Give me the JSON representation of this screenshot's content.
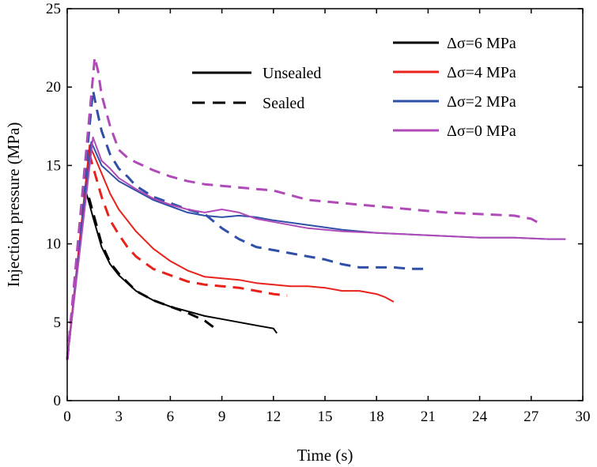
{
  "chart_data": {
    "type": "line",
    "xlabel": "Time (s)",
    "ylabel": "Injection pressure (MPa)",
    "xlim": [
      0,
      30
    ],
    "ylim": [
      0,
      25
    ],
    "xticks": [
      0,
      3,
      6,
      9,
      12,
      15,
      18,
      21,
      24,
      27,
      30
    ],
    "yticks": [
      0,
      5,
      10,
      15,
      20,
      25
    ],
    "grid": false,
    "legend_style": {
      "position": "top-left-center",
      "entries": [
        {
          "label": "Unsealed",
          "dash": "solid"
        },
        {
          "label": "Sealed",
          "dash": "dashed"
        }
      ]
    },
    "legend_color": {
      "position": "top-right",
      "entries": [
        {
          "label": "Δσ=6 MPa",
          "color": "#000000"
        },
        {
          "label": "Δσ=4 MPa",
          "color": "#e8221b"
        },
        {
          "label": "Δσ=2 MPa",
          "color": "#2f4fa8"
        },
        {
          "label": "Δσ=0 MPa",
          "color": "#b04ab8"
        }
      ]
    },
    "series": [
      {
        "name": "Δσ=6 MPa",
        "style": "Unsealed",
        "color": "#000000",
        "x": [
          0,
          1.1,
          1.2,
          1.5,
          2,
          2.5,
          3,
          4,
          5,
          6,
          7,
          8,
          9,
          10,
          11,
          12,
          12.2
        ],
        "y": [
          2.6,
          13.3,
          12.9,
          11.7,
          9.8,
          8.7,
          8.0,
          7.0,
          6.4,
          6.0,
          5.7,
          5.4,
          5.2,
          5.0,
          4.8,
          4.6,
          4.3
        ]
      },
      {
        "name": "Δσ=6 MPa",
        "style": "Sealed",
        "color": "#000000",
        "x": [
          0,
          1.0,
          1.2,
          1.5,
          2,
          2.5,
          3,
          4,
          5,
          6,
          7,
          8,
          8.5
        ],
        "y": [
          2.6,
          13.5,
          13.2,
          12.0,
          10.0,
          8.8,
          8.1,
          7.0,
          6.4,
          6.0,
          5.6,
          5.1,
          4.7
        ]
      },
      {
        "name": "Δσ=4 MPa",
        "style": "Unsealed",
        "color": "#e8221b",
        "x": [
          0,
          1.3,
          1.5,
          2,
          2.5,
          3,
          4,
          5,
          6,
          7,
          8,
          9,
          10,
          11,
          12,
          13,
          14,
          15,
          16,
          17,
          18,
          18.5,
          19
        ],
        "y": [
          2.6,
          16.3,
          15.8,
          14.5,
          13.2,
          12.2,
          10.8,
          9.7,
          8.9,
          8.3,
          7.9,
          7.8,
          7.7,
          7.5,
          7.4,
          7.3,
          7.3,
          7.2,
          7.0,
          7.0,
          6.8,
          6.6,
          6.3
        ]
      },
      {
        "name": "Δσ=4 MPa",
        "style": "Sealed",
        "color": "#e8221b",
        "x": [
          0,
          1.2,
          1.4,
          2,
          2.5,
          3,
          3.5,
          4,
          5,
          6,
          7,
          8,
          9,
          10,
          11,
          12,
          12.8
        ],
        "y": [
          2.6,
          16.1,
          15.3,
          13.0,
          11.5,
          10.6,
          9.8,
          9.2,
          8.4,
          8.0,
          7.6,
          7.4,
          7.3,
          7.2,
          7.0,
          6.8,
          6.7
        ]
      },
      {
        "name": "Δσ=2 MPa",
        "style": "Unsealed",
        "color": "#2f4fa8",
        "x": [
          0,
          1.4,
          1.6,
          2,
          2.5,
          3,
          4,
          5,
          6,
          7,
          8,
          9,
          10,
          11,
          12,
          14,
          16,
          18,
          20,
          22,
          24,
          26,
          28,
          29
        ],
        "y": [
          2.6,
          16.5,
          16.0,
          15.0,
          14.5,
          14.0,
          13.4,
          12.8,
          12.4,
          12.0,
          11.8,
          11.7,
          11.8,
          11.7,
          11.5,
          11.2,
          10.9,
          10.7,
          10.6,
          10.5,
          10.4,
          10.4,
          10.3,
          10.3
        ]
      },
      {
        "name": "Δσ=2 MPa",
        "style": "Sealed",
        "color": "#2f4fa8",
        "x": [
          0,
          1.5,
          1.7,
          2,
          2.5,
          3,
          3.5,
          4,
          5,
          6,
          7,
          8,
          9,
          10,
          11,
          12,
          13,
          14,
          15,
          16,
          17,
          18,
          19,
          20,
          20.8
        ],
        "y": [
          2.6,
          19.8,
          18.7,
          17.2,
          15.7,
          14.8,
          14.3,
          13.7,
          13.0,
          12.6,
          12.2,
          11.9,
          11.0,
          10.3,
          9.8,
          9.6,
          9.4,
          9.2,
          9.0,
          8.7,
          8.5,
          8.5,
          8.5,
          8.4,
          8.4
        ]
      },
      {
        "name": "Δσ=0 MPa",
        "style": "Unsealed",
        "color": "#b04ab8",
        "x": [
          0,
          1.5,
          1.7,
          2,
          2.5,
          3,
          4,
          5,
          6,
          7,
          8,
          9,
          10,
          11,
          12,
          14,
          16,
          18,
          20,
          22,
          24,
          26,
          28,
          29
        ],
        "y": [
          2.6,
          16.8,
          16.2,
          15.3,
          14.8,
          14.2,
          13.5,
          12.9,
          12.5,
          12.2,
          12.0,
          12.2,
          12.0,
          11.6,
          11.4,
          11.0,
          10.8,
          10.7,
          10.6,
          10.5,
          10.4,
          10.4,
          10.3,
          10.3
        ]
      },
      {
        "name": "Δσ=0 MPa",
        "style": "Sealed",
        "color": "#b04ab8",
        "x": [
          0,
          1.6,
          1.8,
          2,
          2.5,
          3,
          3.5,
          4,
          5,
          6,
          7,
          8,
          9,
          10,
          11,
          12,
          14,
          16,
          18,
          20,
          22,
          24,
          26,
          27,
          27.5
        ],
        "y": [
          2.6,
          21.9,
          21.0,
          19.5,
          17.5,
          16.0,
          15.5,
          15.2,
          14.7,
          14.3,
          14.0,
          13.8,
          13.7,
          13.6,
          13.5,
          13.4,
          12.8,
          12.6,
          12.4,
          12.2,
          12.0,
          11.9,
          11.8,
          11.6,
          11.3
        ]
      }
    ]
  }
}
